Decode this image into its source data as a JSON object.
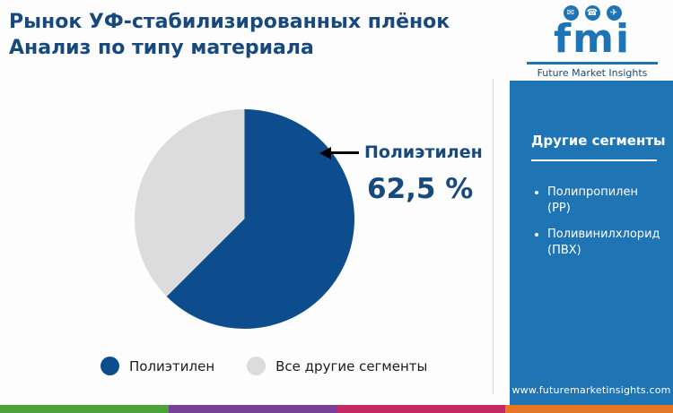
{
  "title": {
    "line1": "Рынок УФ-стабилизированных плёнок",
    "line2": "Анализ по типу материала"
  },
  "chart_data": {
    "type": "pie",
    "title": "Рынок УФ-стабилизированных плёнок — Анализ по типу материала",
    "slices": [
      {
        "label": "Полиэтилен",
        "value": 62.5,
        "color": "#0e4d8d"
      },
      {
        "label": "Все другие сегменты",
        "value": 37.5,
        "color": "#dcdcdc"
      }
    ],
    "annotation": {
      "label": "Полиэтилен",
      "value_text": "62,5 %"
    },
    "legend_position": "bottom",
    "start_angle_deg": 0
  },
  "sidebar": {
    "heading": "Другие сегменты",
    "items": [
      {
        "line1": "Полипропилен",
        "line2": "(PP)"
      },
      {
        "line1": "Поливинилхлорид",
        "line2": "(ПВХ)"
      }
    ],
    "url": "www.futuremarketinsights.com"
  },
  "logo": {
    "text": "fmi",
    "tagline": "Future Market Insights",
    "icons": [
      "chat-icon",
      "person-icon",
      "plane-icon"
    ],
    "icon_glyphs": {
      "chat": "✉",
      "person": "☎",
      "plane": "✈"
    }
  },
  "colors": {
    "accent_blue": "#1f74b4",
    "title_navy": "#17497d",
    "pie_primary": "#0e4d8d",
    "pie_secondary": "#dcdcdc",
    "stripe": [
      "#4ba23a",
      "#7a3f98",
      "#c42a62",
      "#e87722"
    ]
  }
}
